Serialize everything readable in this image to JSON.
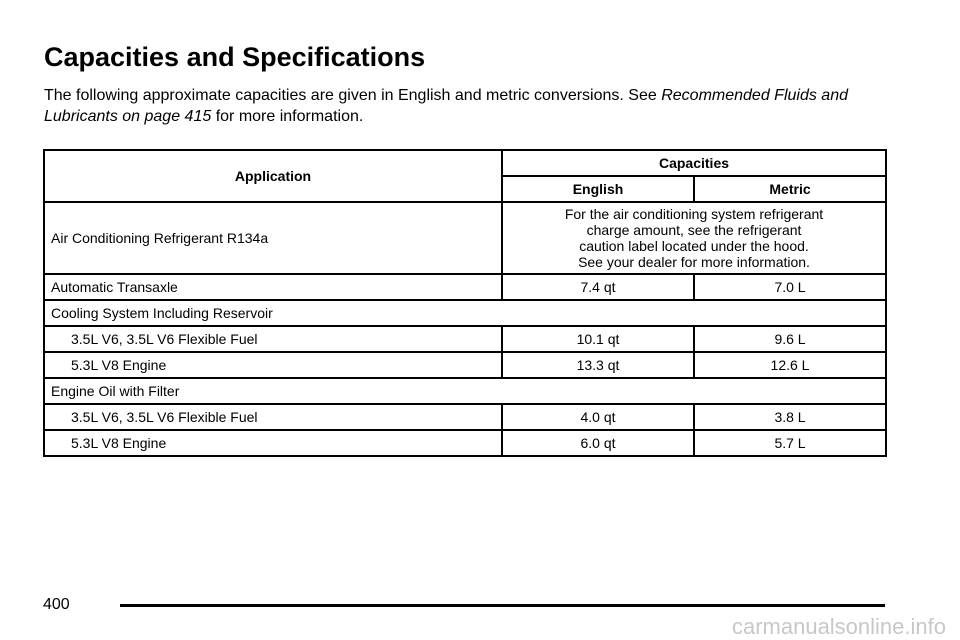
{
  "header": {
    "title": "Capacities and Specifications"
  },
  "intro": {
    "text": "The following approximate capacities are given in English and metric conversions. See",
    "link": "Recommended Fluids and Lubricants on page 415",
    "suffix": "for more information."
  },
  "table": {
    "headers": {
      "application": "Application",
      "capacities": "Capacities",
      "english": "English",
      "metric": "Metric"
    },
    "rows": [
      {
        "label": "Air Conditioning Refrigerant R134a",
        "note": [
          "For the air conditioning system refrigerant",
          "charge amount, see the refrigerant",
          "caution label located under the hood.",
          "See your dealer for more information."
        ]
      },
      {
        "label": "Automatic Transaxle",
        "english": "7.4 qt",
        "metric": "7.0 L"
      },
      {
        "label": "Cooling System Including Reservoir",
        "items": [
          {
            "label": "3.5L V6, 3.5L V6 Flexible Fuel",
            "english": "10.1 qt",
            "metric": "9.6 L"
          },
          {
            "label": "5.3L V8 Engine",
            "english": "13.3 qt",
            "metric": "12.6 L"
          }
        ]
      },
      {
        "label": "Engine Oil with Filter",
        "items": [
          {
            "label": "3.5L V6, 3.5L V6 Flexible Fuel",
            "english": "4.0 qt",
            "metric": "3.8 L"
          },
          {
            "label": "5.3L V8 Engine",
            "english": "6.0 qt",
            "metric": "5.7 L"
          }
        ]
      }
    ]
  },
  "footer": {
    "page": "400",
    "watermark": "carmanualsonline.info"
  }
}
